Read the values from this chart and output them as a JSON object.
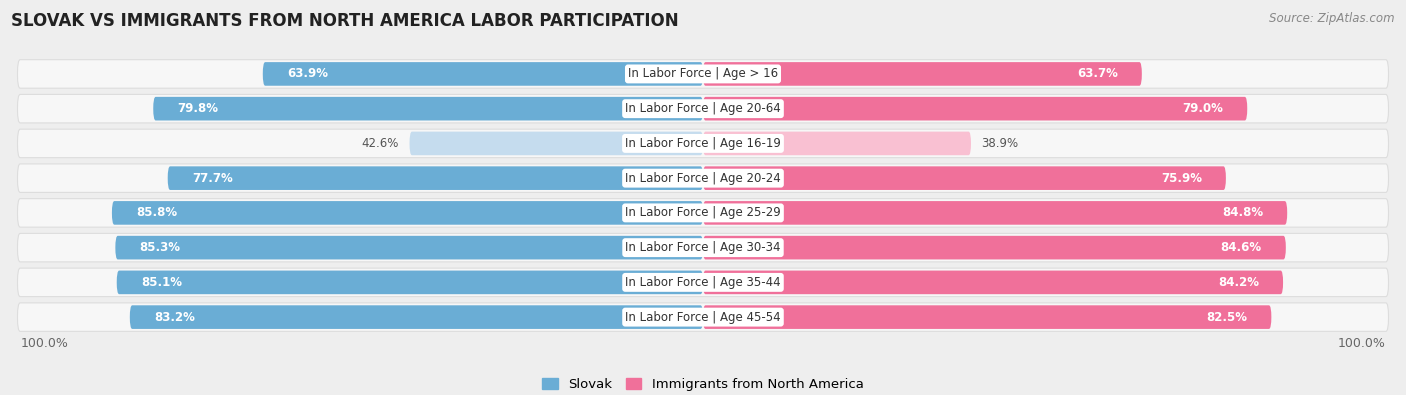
{
  "title": "Slovak vs Immigrants from North America Labor Participation",
  "source": "Source: ZipAtlas.com",
  "categories": [
    "In Labor Force | Age > 16",
    "In Labor Force | Age 20-64",
    "In Labor Force | Age 16-19",
    "In Labor Force | Age 20-24",
    "In Labor Force | Age 25-29",
    "In Labor Force | Age 30-34",
    "In Labor Force | Age 35-44",
    "In Labor Force | Age 45-54"
  ],
  "slovak_values": [
    63.9,
    79.8,
    42.6,
    77.7,
    85.8,
    85.3,
    85.1,
    83.2
  ],
  "immigrant_values": [
    63.7,
    79.0,
    38.9,
    75.9,
    84.8,
    84.6,
    84.2,
    82.5
  ],
  "slovak_color": "#6aadd5",
  "slovak_color_light": "#c5dcee",
  "immigrant_color": "#f0709a",
  "immigrant_color_light": "#f9c0d2",
  "background_color": "#eeeeee",
  "row_bg": "#f7f7f7",
  "row_border": "#dddddd",
  "legend_slovak": "Slovak",
  "legend_immigrant": "Immigrants from North America",
  "label_fontsize": 8.5,
  "value_fontsize": 8.5,
  "title_fontsize": 12,
  "source_fontsize": 8.5,
  "legend_fontsize": 9.5
}
